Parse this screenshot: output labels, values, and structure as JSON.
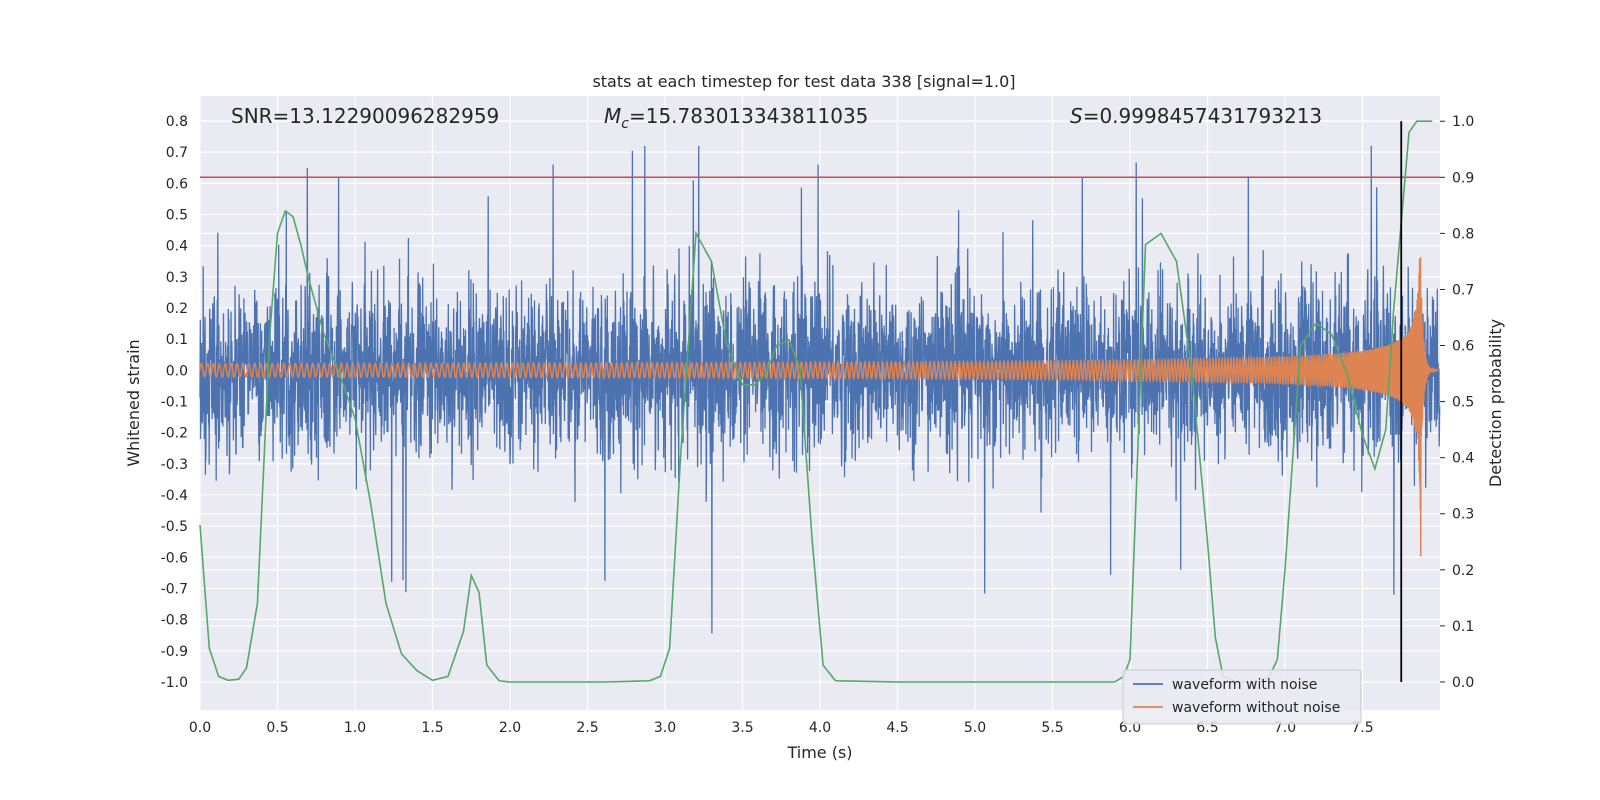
{
  "chart_data": {
    "type": "line",
    "title": "stats at each timestep for test data 338 [signal=1.0]",
    "xlabel": "Time (s)",
    "ylabel": "Whitened strain",
    "ylabel_right": "Detection probability",
    "xlim": [
      0.0,
      8.0
    ],
    "ylim": [
      -1.09,
      0.88
    ],
    "ylim_right": [
      -0.05,
      1.045
    ],
    "x_ticks": [
      "0.0",
      "0.5",
      "1.0",
      "1.5",
      "2.0",
      "2.5",
      "3.0",
      "3.5",
      "4.0",
      "4.5",
      "5.0",
      "5.5",
      "6.0",
      "6.5",
      "7.0",
      "7.5"
    ],
    "y_ticks": [
      "0.8",
      "0.7",
      "0.6",
      "0.5",
      "0.4",
      "0.3",
      "0.2",
      "0.1",
      "0.0",
      "-0.1",
      "-0.2",
      "-0.3",
      "-0.4",
      "-0.5",
      "-0.6",
      "-0.7",
      "-0.8",
      "-0.9",
      "-1.0"
    ],
    "y_ticks_right": [
      "1.0",
      "0.9",
      "0.8",
      "0.7",
      "0.6",
      "0.5",
      "0.4",
      "0.3",
      "0.2",
      "0.1",
      "0.0"
    ],
    "grid": true,
    "legend_position": "lower-right",
    "annotations": {
      "snr": "SNR=13.12290096282959",
      "mc_symbol": "M",
      "mc_sub": "c",
      "mc_value": "=15.783013343811035",
      "s_symbol": "S",
      "s_value": "=0.9998457431793213"
    },
    "threshold": {
      "value": 0.9,
      "axis": "right",
      "color": "#c44e52"
    },
    "marker_time": 7.75,
    "series": [
      {
        "name": "waveform with noise",
        "color": "#4c72b0",
        "axis": "left",
        "style": "noise",
        "envelope": {
          "typical": 0.28,
          "peak": 0.72,
          "min_peak": -1.0
        }
      },
      {
        "name": "waveform without noise",
        "color": "#dd8452",
        "axis": "left",
        "style": "chirp",
        "merger_time": 7.88,
        "peak_high": 0.6,
        "peak_low": -0.76
      },
      {
        "name": "",
        "color": "#55a868",
        "axis": "right",
        "style": "line",
        "x": [
          0.0,
          0.06,
          0.12,
          0.18,
          0.25,
          0.3,
          0.37,
          0.45,
          0.5,
          0.55,
          0.6,
          0.65,
          0.7,
          0.8,
          0.9,
          1.0,
          1.1,
          1.2,
          1.3,
          1.4,
          1.5,
          1.6,
          1.7,
          1.75,
          1.8,
          1.85,
          1.93,
          2.0,
          2.3,
          2.6,
          2.9,
          2.97,
          3.03,
          3.1,
          3.2,
          3.3,
          3.4,
          3.5,
          3.58,
          3.65,
          3.72,
          3.8,
          3.87,
          3.95,
          4.02,
          4.1,
          4.5,
          5.0,
          5.5,
          5.9,
          5.96,
          6.0,
          6.1,
          6.2,
          6.3,
          6.4,
          6.5,
          6.55,
          6.6,
          6.7,
          6.8,
          6.9,
          6.95,
          7.0,
          7.1,
          7.2,
          7.3,
          7.4,
          7.5,
          7.58,
          7.65,
          7.7,
          7.8,
          7.85,
          7.9,
          7.95
        ],
        "y": [
          0.28,
          0.06,
          0.01,
          0.003,
          0.005,
          0.025,
          0.14,
          0.62,
          0.8,
          0.84,
          0.83,
          0.78,
          0.72,
          0.62,
          0.55,
          0.47,
          0.32,
          0.14,
          0.05,
          0.02,
          0.003,
          0.01,
          0.09,
          0.19,
          0.16,
          0.03,
          0.002,
          0.0,
          0.0,
          0.0,
          0.002,
          0.01,
          0.06,
          0.4,
          0.8,
          0.75,
          0.6,
          0.53,
          0.53,
          0.55,
          0.6,
          0.61,
          0.56,
          0.25,
          0.03,
          0.002,
          0.0,
          0.0,
          0.0,
          0.0,
          0.01,
          0.04,
          0.78,
          0.8,
          0.75,
          0.55,
          0.25,
          0.08,
          0.01,
          0.0,
          0.0,
          0.01,
          0.04,
          0.2,
          0.6,
          0.64,
          0.62,
          0.55,
          0.44,
          0.38,
          0.45,
          0.66,
          0.98,
          1.0,
          1.0,
          1.0
        ]
      }
    ]
  }
}
